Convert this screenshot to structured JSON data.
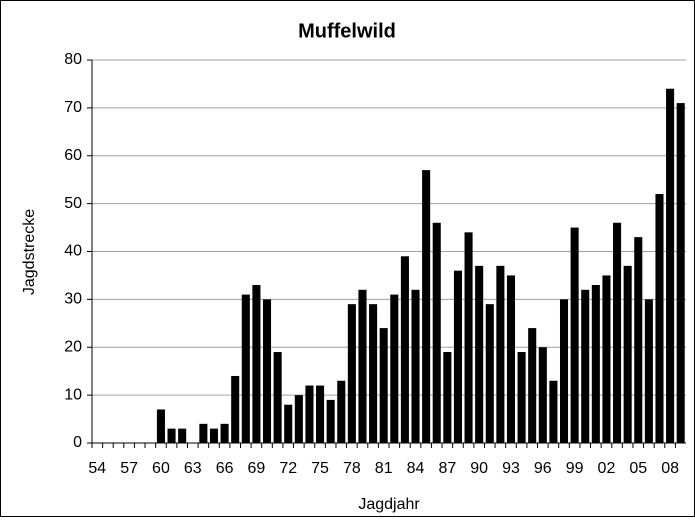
{
  "chart_data": {
    "type": "bar",
    "title": "Muffelwild",
    "x_label": "Jagdjahr",
    "y_label": "Jagdstrecke",
    "categories": [
      "54",
      null,
      null,
      "57",
      null,
      null,
      "60",
      null,
      null,
      "63",
      null,
      null,
      "66",
      null,
      null,
      "69",
      null,
      null,
      "72",
      null,
      null,
      "75",
      null,
      null,
      "78",
      null,
      null,
      "81",
      null,
      null,
      "84",
      null,
      null,
      "87",
      null,
      null,
      "90",
      null,
      null,
      "93",
      null,
      null,
      "96",
      null,
      null,
      "99",
      null,
      null,
      "02",
      null,
      null,
      "05",
      null,
      null,
      "08",
      null
    ],
    "values": [
      0,
      0,
      0,
      0,
      0,
      0,
      7,
      3,
      3,
      0,
      4,
      3,
      4,
      14,
      31,
      33,
      30,
      19,
      8,
      10,
      12,
      12,
      9,
      13,
      29,
      32,
      29,
      24,
      31,
      39,
      32,
      57,
      46,
      19,
      36,
      44,
      37,
      29,
      37,
      35,
      19,
      24,
      20,
      13,
      30,
      45,
      32,
      33,
      35,
      46,
      37,
      43,
      30,
      52,
      74,
      71
    ],
    "color": "#000000",
    "ylim": [
      0,
      80
    ],
    "yticks": [
      0,
      10,
      20,
      30,
      40,
      50,
      60,
      70,
      80
    ],
    "grid": true
  }
}
